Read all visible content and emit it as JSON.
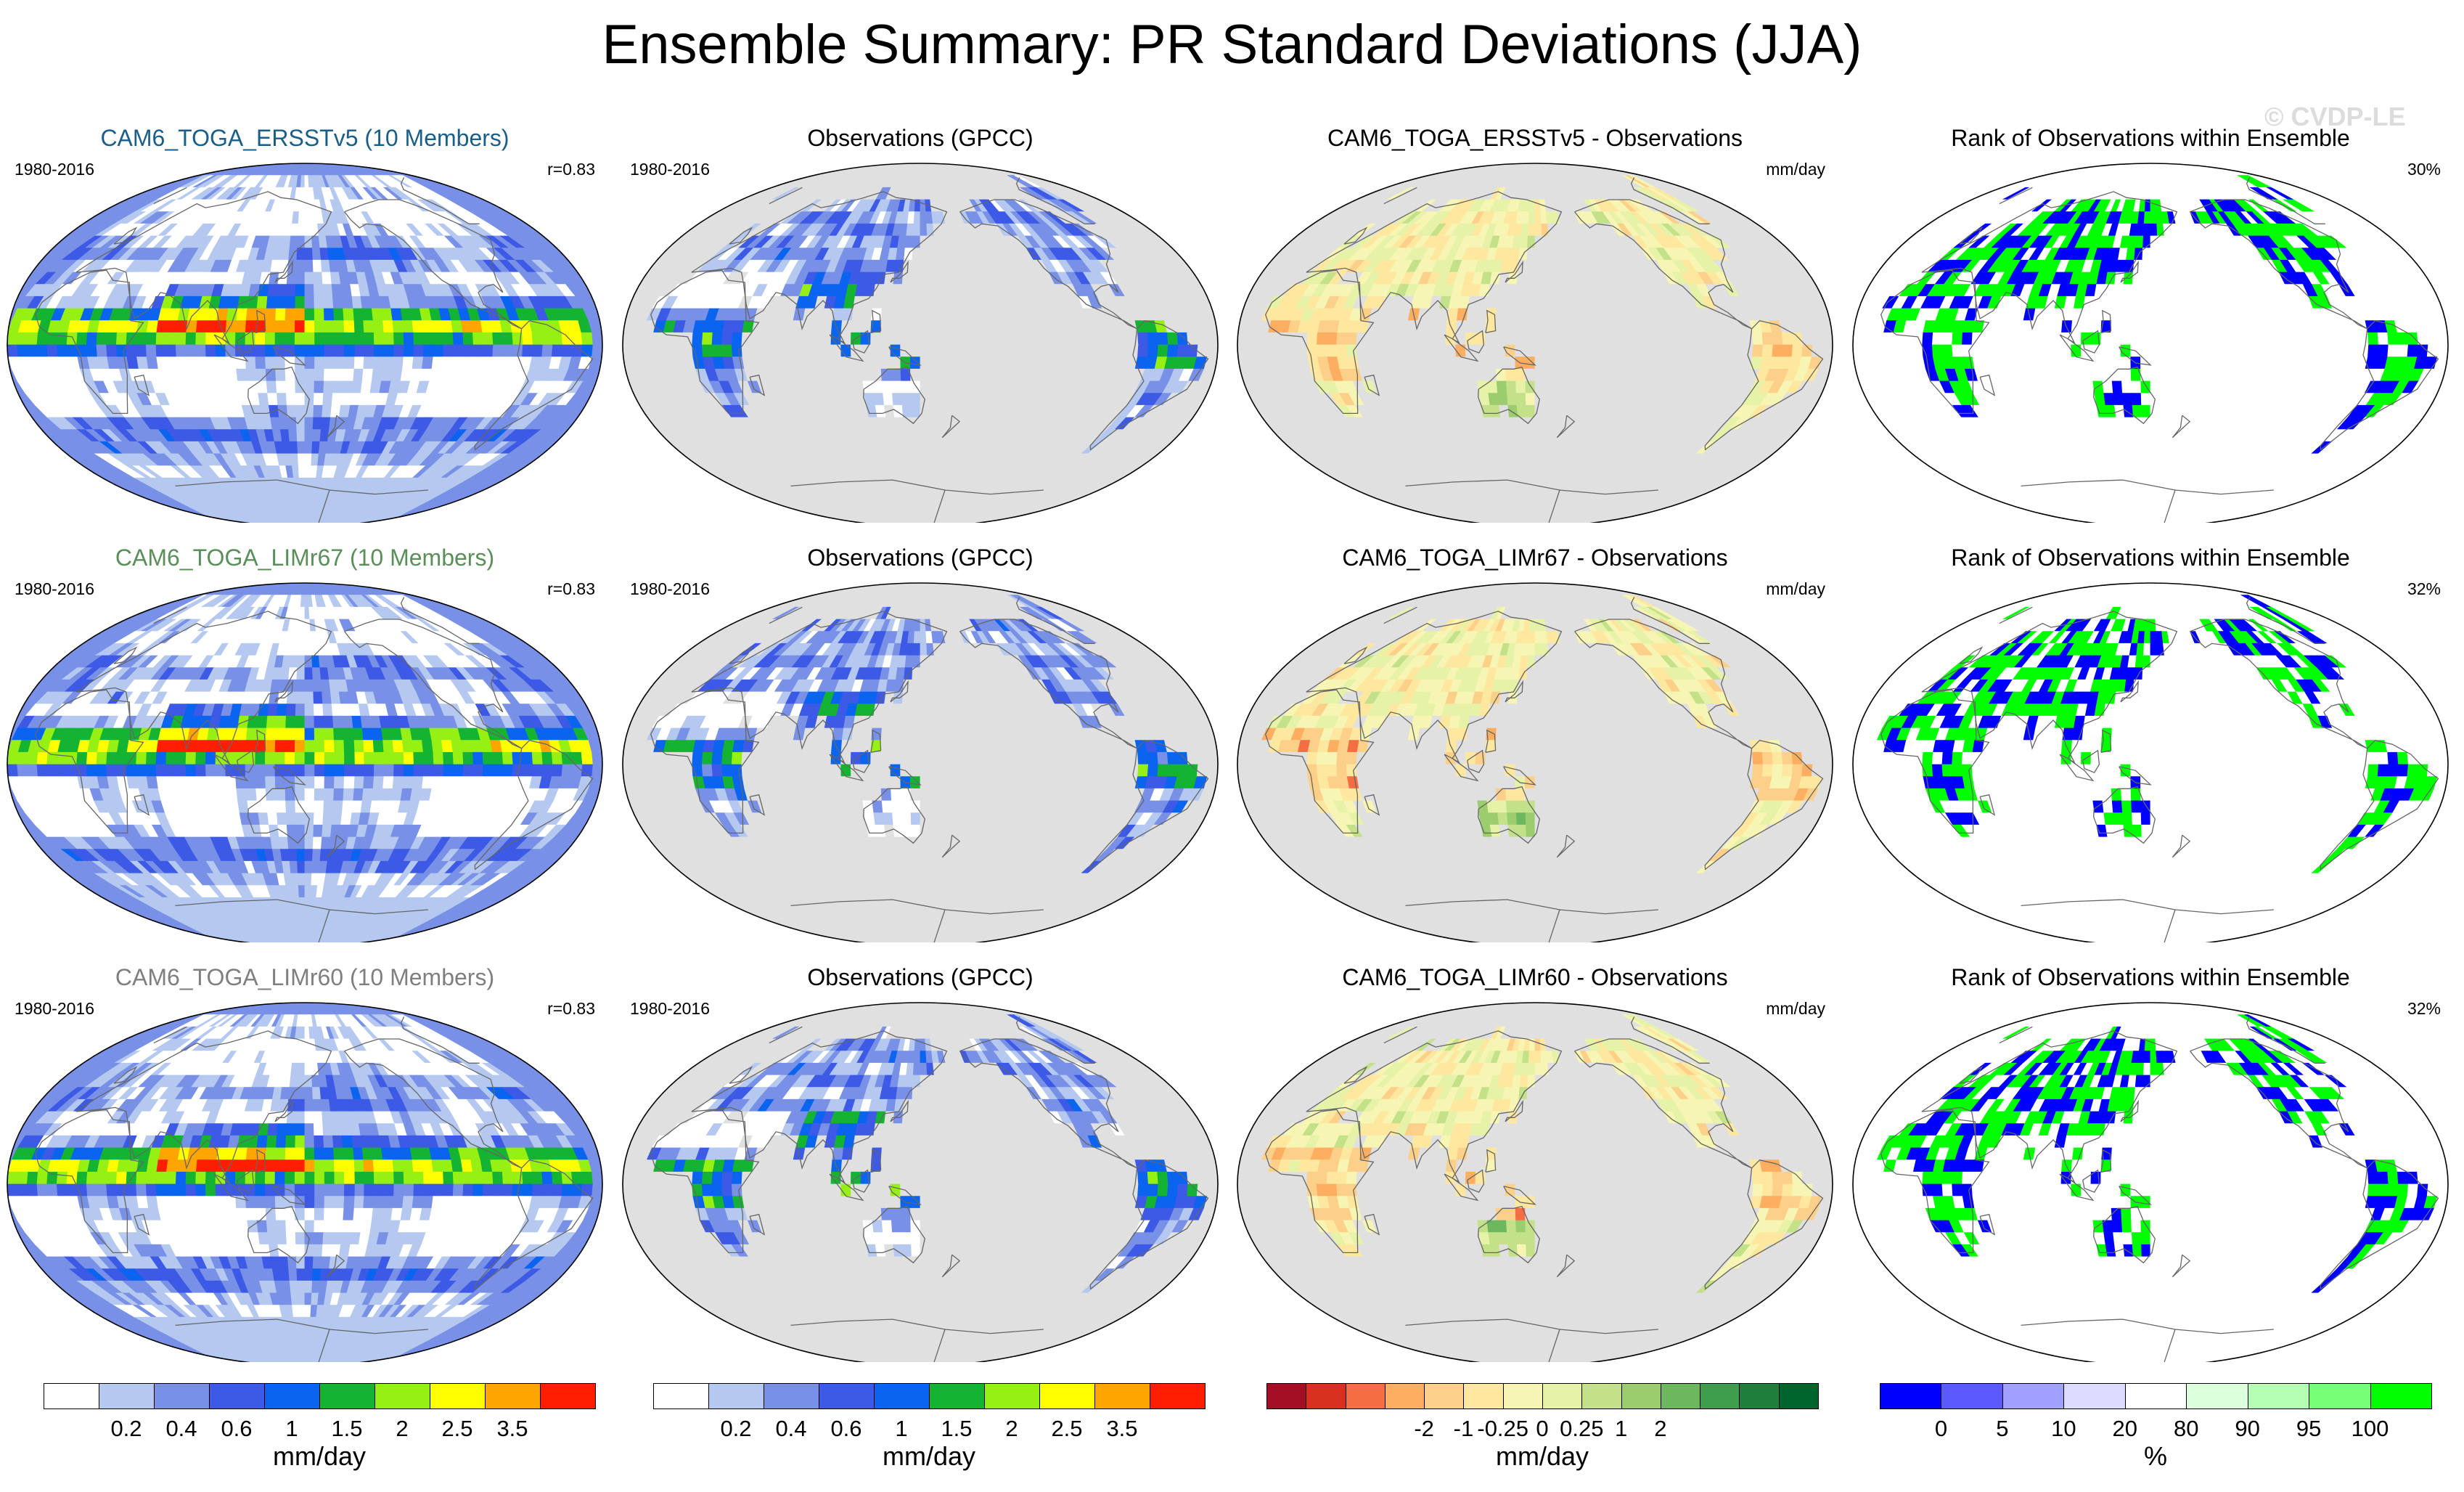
{
  "title": "Ensemble Summary: PR Standard Deviations (JJA)",
  "watermark": "© CVDP-LE",
  "chart_data": {
    "type": "heatmap",
    "panels": [
      {
        "row": 0,
        "col": 0,
        "kind": "model",
        "title": "CAM6_TOGA_ERSSTv5 (10 Members)",
        "title_color": "#1a5e8a",
        "left": "1980-2016",
        "right": "r=0.83"
      },
      {
        "row": 0,
        "col": 1,
        "kind": "obs",
        "title": "Observations (GPCC)",
        "left": "1980-2016",
        "right": ""
      },
      {
        "row": 0,
        "col": 2,
        "kind": "diff",
        "title": "CAM6_TOGA_ERSSTv5 - Observations",
        "left": "",
        "right": "mm/day"
      },
      {
        "row": 0,
        "col": 3,
        "kind": "rank",
        "title": "Rank of Observations within Ensemble",
        "left": "",
        "right": "30%"
      },
      {
        "row": 1,
        "col": 0,
        "kind": "model",
        "title": "CAM6_TOGA_LIMr67 (10 Members)",
        "title_color": "#5a8f5a",
        "left": "1980-2016",
        "right": "r=0.83"
      },
      {
        "row": 1,
        "col": 1,
        "kind": "obs",
        "title": "Observations (GPCC)",
        "left": "1980-2016",
        "right": ""
      },
      {
        "row": 1,
        "col": 2,
        "kind": "diff",
        "title": "CAM6_TOGA_LIMr67 - Observations",
        "left": "",
        "right": "mm/day"
      },
      {
        "row": 1,
        "col": 3,
        "kind": "rank",
        "title": "Rank of Observations within Ensemble",
        "left": "",
        "right": "32%"
      },
      {
        "row": 2,
        "col": 0,
        "kind": "model",
        "title": "CAM6_TOGA_LIMr60 (10 Members)",
        "title_color": "#7f7f7f",
        "left": "1980-2016",
        "right": "r=0.83"
      },
      {
        "row": 2,
        "col": 1,
        "kind": "obs",
        "title": "Observations (GPCC)",
        "left": "1980-2016",
        "right": ""
      },
      {
        "row": 2,
        "col": 2,
        "kind": "diff",
        "title": "CAM6_TOGA_LIMr60 - Observations",
        "left": "",
        "right": "mm/day"
      },
      {
        "row": 2,
        "col": 3,
        "kind": "rank",
        "title": "Rank of Observations within Ensemble",
        "left": "",
        "right": "32%"
      }
    ],
    "colorbars": [
      {
        "label": "mm/day",
        "colors": [
          "#ffffff",
          "#b4c8f0",
          "#7890e6",
          "#3c5ae6",
          "#0a64f0",
          "#14b432",
          "#96f014",
          "#ffff00",
          "#ffa500",
          "#ff1e00"
        ],
        "ticks": [
          "0.2",
          "0.4",
          "0.6",
          "1",
          "1.5",
          "2",
          "2.5",
          "3.5"
        ]
      },
      {
        "label": "mm/day",
        "colors": [
          "#ffffff",
          "#b4c8f0",
          "#7890e6",
          "#3c5ae6",
          "#0a64f0",
          "#14b432",
          "#96f014",
          "#ffff00",
          "#ffa500",
          "#ff1e00"
        ],
        "ticks": [
          "0.2",
          "0.4",
          "0.6",
          "1",
          "1.5",
          "2",
          "2.5",
          "3.5"
        ]
      },
      {
        "label": "mm/day",
        "colors": [
          "#a50f26",
          "#d7301f",
          "#f46d43",
          "#fdae61",
          "#fdd08a",
          "#fee8a0",
          "#f6f5b4",
          "#e5f2a8",
          "#c2e189",
          "#9bcd6e",
          "#6db85f",
          "#3f9e4e",
          "#1d7f3a",
          "#00642d"
        ],
        "ticks": [
          "-2",
          "-1",
          "-0.25",
          "0",
          "0.25",
          "1",
          "2"
        ]
      },
      {
        "label": "%",
        "colors": [
          "#0000ff",
          "#5a5aff",
          "#a0a0ff",
          "#dcdcff",
          "#ffffff",
          "#dcffdc",
          "#b4ffb4",
          "#78ff78",
          "#00ff00"
        ],
        "ticks": [
          "0",
          "5",
          "10",
          "20",
          "80",
          "90",
          "95",
          "100"
        ]
      }
    ]
  }
}
